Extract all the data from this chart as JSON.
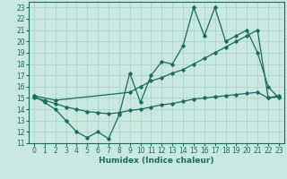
{
  "title": "",
  "xlabel": "Humidex (Indice chaleur)",
  "ylabel": "",
  "bg_color": "#c8e8e0",
  "grid_color": "#b0d4cc",
  "line_color": "#1a6b60",
  "xlim": [
    -0.5,
    23.5
  ],
  "ylim": [
    11,
    23.5
  ],
  "yticks": [
    11,
    12,
    13,
    14,
    15,
    16,
    17,
    18,
    19,
    20,
    21,
    22,
    23
  ],
  "xticks": [
    0,
    1,
    2,
    3,
    4,
    5,
    6,
    7,
    8,
    9,
    10,
    11,
    12,
    13,
    14,
    15,
    16,
    17,
    18,
    19,
    20,
    21,
    22,
    23
  ],
  "line1_x": [
    0,
    1,
    2,
    3,
    4,
    5,
    6,
    7,
    8,
    9,
    10,
    11,
    12,
    13,
    14,
    15,
    16,
    17,
    18,
    19,
    20,
    21,
    22,
    23
  ],
  "line1_y": [
    15.2,
    14.6,
    14.0,
    13.0,
    12.0,
    11.5,
    12.0,
    11.4,
    13.5,
    17.2,
    14.6,
    17.0,
    18.2,
    18.0,
    19.6,
    23.0,
    20.5,
    23.0,
    20.0,
    20.5,
    21.0,
    19.0,
    16.0,
    15.0
  ],
  "line2_x": [
    0,
    2,
    9,
    10,
    11,
    12,
    13,
    14,
    15,
    16,
    17,
    18,
    19,
    20,
    21,
    22,
    23
  ],
  "line2_y": [
    15.2,
    14.8,
    15.5,
    16.0,
    16.5,
    16.8,
    17.2,
    17.5,
    18.0,
    18.5,
    19.0,
    19.5,
    20.0,
    20.5,
    21.0,
    15.0,
    15.2
  ],
  "line3_x": [
    0,
    1,
    2,
    3,
    4,
    5,
    6,
    7,
    8,
    9,
    10,
    11,
    12,
    13,
    14,
    15,
    16,
    17,
    18,
    19,
    20,
    21,
    22,
    23
  ],
  "line3_y": [
    15.0,
    14.8,
    14.5,
    14.2,
    14.0,
    13.8,
    13.7,
    13.6,
    13.7,
    13.9,
    14.0,
    14.2,
    14.4,
    14.5,
    14.7,
    14.9,
    15.0,
    15.1,
    15.2,
    15.3,
    15.4,
    15.5,
    15.0,
    15.1
  ],
  "tick_fontsize": 5.5,
  "label_fontsize": 6.5
}
